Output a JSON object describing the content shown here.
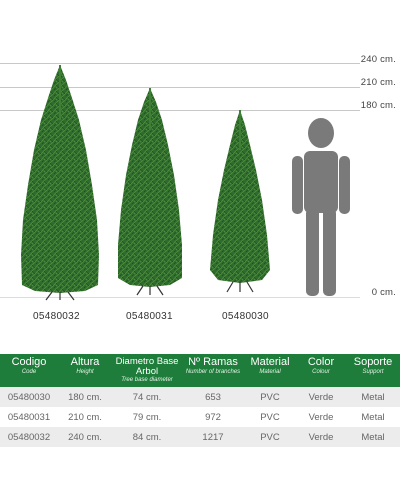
{
  "height_markers": [
    {
      "label": "240 cm."
    },
    {
      "label": "210 cm."
    },
    {
      "label": "180 cm."
    },
    {
      "label": "0 cm."
    }
  ],
  "trees": [
    {
      "code": "05480032",
      "height_cm": 240
    },
    {
      "code": "05480031",
      "height_cm": 210
    },
    {
      "code": "05480030",
      "height_cm": 180
    }
  ],
  "colors": {
    "header_green": "#1e7d3a",
    "person_grey": "#7a7a7a",
    "tree_green": "#2f6a2e",
    "row_grey": "#ececec"
  },
  "table": {
    "columns": [
      {
        "title": "Codigo",
        "subtitle": "Code"
      },
      {
        "title": "Altura",
        "subtitle": "Height"
      },
      {
        "title": "Diametro Base Arbol",
        "subtitle": "Tree base diameter"
      },
      {
        "title": "Nº Ramas",
        "subtitle": "Number of branches"
      },
      {
        "title": "Material",
        "subtitle": "Material"
      },
      {
        "title": "Color",
        "subtitle": "Colour"
      },
      {
        "title": "Soporte",
        "subtitle": "Support"
      }
    ],
    "rows": [
      [
        "05480030",
        "180 cm.",
        "74 cm.",
        "653",
        "PVC",
        "Verde",
        "Metal"
      ],
      [
        "05480031",
        "210 cm.",
        "79 cm.",
        "972",
        "PVC",
        "Verde",
        "Metal"
      ],
      [
        "05480032",
        "240 cm.",
        "84 cm.",
        "1217",
        "PVC",
        "Verde",
        "Metal"
      ]
    ]
  }
}
